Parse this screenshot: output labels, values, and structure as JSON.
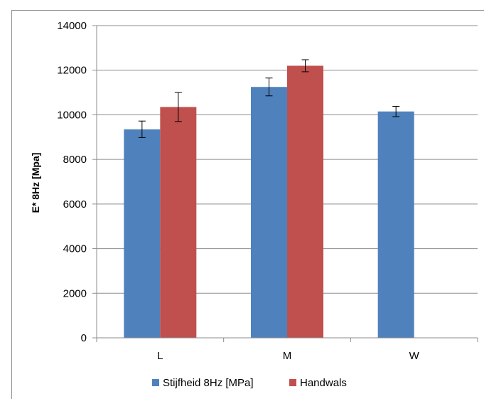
{
  "chart_data": {
    "type": "bar",
    "title": "",
    "xlabel": "",
    "ylabel": "E* 8Hz [Mpa]",
    "ylim": [
      0,
      14000
    ],
    "yticks": [
      0,
      2000,
      4000,
      6000,
      8000,
      10000,
      12000,
      14000
    ],
    "grid": true,
    "legend_position": "bottom",
    "categories": [
      "L",
      "M",
      "W"
    ],
    "series": [
      {
        "name": "Stijfheid 8Hz [MPa]",
        "color": "#4f81bd",
        "values": [
          9350,
          11250,
          10150
        ],
        "errors": [
          370,
          400,
          230
        ]
      },
      {
        "name": "Handwals",
        "color": "#c0504d",
        "values": [
          10350,
          12200,
          null
        ],
        "errors": [
          650,
          270,
          null
        ]
      }
    ]
  }
}
